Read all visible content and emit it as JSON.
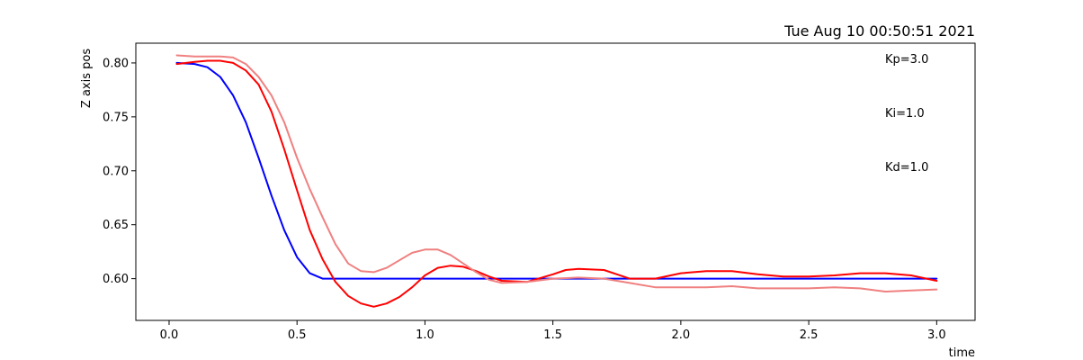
{
  "chart_data": {
    "type": "line",
    "title": "Tue Aug 10 00:50:51 2021",
    "xlabel": "time",
    "ylabel": "Z axis pos",
    "xlim": [
      -0.13,
      3.15
    ],
    "ylim": [
      0.5613,
      0.8183
    ],
    "xticks": [
      0.0,
      0.5,
      1.0,
      1.5,
      2.0,
      2.5,
      3.0
    ],
    "xtick_labels": [
      "0.0",
      "0.5",
      "1.0",
      "1.5",
      "2.0",
      "2.5",
      "3.0"
    ],
    "yticks": [
      0.6,
      0.65,
      0.7,
      0.75,
      0.8
    ],
    "ytick_labels": [
      "0.60",
      "0.65",
      "0.70",
      "0.75",
      "0.80"
    ],
    "grid": false,
    "annotations": [
      "Kp=3.0",
      "Ki=1.0",
      "Kd=1.0"
    ],
    "series": [
      {
        "color": "#0000ff",
        "points": [
          [
            0.03,
            0.8
          ],
          [
            0.1,
            0.799
          ],
          [
            0.15,
            0.796
          ],
          [
            0.2,
            0.787
          ],
          [
            0.25,
            0.77
          ],
          [
            0.3,
            0.745
          ],
          [
            0.35,
            0.712
          ],
          [
            0.4,
            0.677
          ],
          [
            0.45,
            0.645
          ],
          [
            0.5,
            0.62
          ],
          [
            0.55,
            0.605
          ],
          [
            0.6,
            0.6
          ],
          [
            0.7,
            0.6
          ],
          [
            1.0,
            0.6
          ],
          [
            1.5,
            0.6
          ],
          [
            2.0,
            0.6
          ],
          [
            2.5,
            0.6
          ],
          [
            3.0,
            0.6
          ]
        ]
      },
      {
        "color": "#ff0000",
        "points": [
          [
            0.03,
            0.799
          ],
          [
            0.1,
            0.801
          ],
          [
            0.15,
            0.802
          ],
          [
            0.2,
            0.802
          ],
          [
            0.25,
            0.8
          ],
          [
            0.3,
            0.793
          ],
          [
            0.35,
            0.78
          ],
          [
            0.4,
            0.755
          ],
          [
            0.45,
            0.72
          ],
          [
            0.5,
            0.682
          ],
          [
            0.55,
            0.645
          ],
          [
            0.6,
            0.618
          ],
          [
            0.65,
            0.597
          ],
          [
            0.7,
            0.584
          ],
          [
            0.75,
            0.577
          ],
          [
            0.8,
            0.574
          ],
          [
            0.85,
            0.577
          ],
          [
            0.9,
            0.583
          ],
          [
            0.95,
            0.592
          ],
          [
            1.0,
            0.603
          ],
          [
            1.05,
            0.61
          ],
          [
            1.1,
            0.612
          ],
          [
            1.15,
            0.611
          ],
          [
            1.2,
            0.607
          ],
          [
            1.25,
            0.602
          ],
          [
            1.3,
            0.598
          ],
          [
            1.4,
            0.597
          ],
          [
            1.5,
            0.604
          ],
          [
            1.55,
            0.608
          ],
          [
            1.6,
            0.609
          ],
          [
            1.7,
            0.608
          ],
          [
            1.75,
            0.604
          ],
          [
            1.8,
            0.6
          ],
          [
            1.9,
            0.6
          ],
          [
            2.0,
            0.605
          ],
          [
            2.1,
            0.607
          ],
          [
            2.2,
            0.607
          ],
          [
            2.3,
            0.604
          ],
          [
            2.4,
            0.602
          ],
          [
            2.5,
            0.602
          ],
          [
            2.6,
            0.603
          ],
          [
            2.7,
            0.605
          ],
          [
            2.8,
            0.605
          ],
          [
            2.9,
            0.603
          ],
          [
            3.0,
            0.598
          ]
        ]
      },
      {
        "color": "#f08080",
        "points": [
          [
            0.03,
            0.807
          ],
          [
            0.1,
            0.806
          ],
          [
            0.15,
            0.806
          ],
          [
            0.2,
            0.806
          ],
          [
            0.25,
            0.805
          ],
          [
            0.3,
            0.799
          ],
          [
            0.35,
            0.787
          ],
          [
            0.4,
            0.77
          ],
          [
            0.45,
            0.745
          ],
          [
            0.5,
            0.712
          ],
          [
            0.55,
            0.683
          ],
          [
            0.6,
            0.657
          ],
          [
            0.65,
            0.632
          ],
          [
            0.7,
            0.614
          ],
          [
            0.75,
            0.607
          ],
          [
            0.8,
            0.606
          ],
          [
            0.85,
            0.61
          ],
          [
            0.9,
            0.617
          ],
          [
            0.95,
            0.624
          ],
          [
            1.0,
            0.627
          ],
          [
            1.05,
            0.627
          ],
          [
            1.1,
            0.622
          ],
          [
            1.15,
            0.614
          ],
          [
            1.2,
            0.606
          ],
          [
            1.25,
            0.599
          ],
          [
            1.3,
            0.596
          ],
          [
            1.4,
            0.597
          ],
          [
            1.5,
            0.6
          ],
          [
            1.6,
            0.601
          ],
          [
            1.7,
            0.6
          ],
          [
            1.8,
            0.596
          ],
          [
            1.9,
            0.592
          ],
          [
            2.0,
            0.592
          ],
          [
            2.1,
            0.592
          ],
          [
            2.2,
            0.593
          ],
          [
            2.3,
            0.591
          ],
          [
            2.4,
            0.591
          ],
          [
            2.5,
            0.591
          ],
          [
            2.6,
            0.592
          ],
          [
            2.7,
            0.591
          ],
          [
            2.8,
            0.588
          ],
          [
            2.9,
            0.589
          ],
          [
            3.0,
            0.59
          ]
        ]
      }
    ]
  }
}
